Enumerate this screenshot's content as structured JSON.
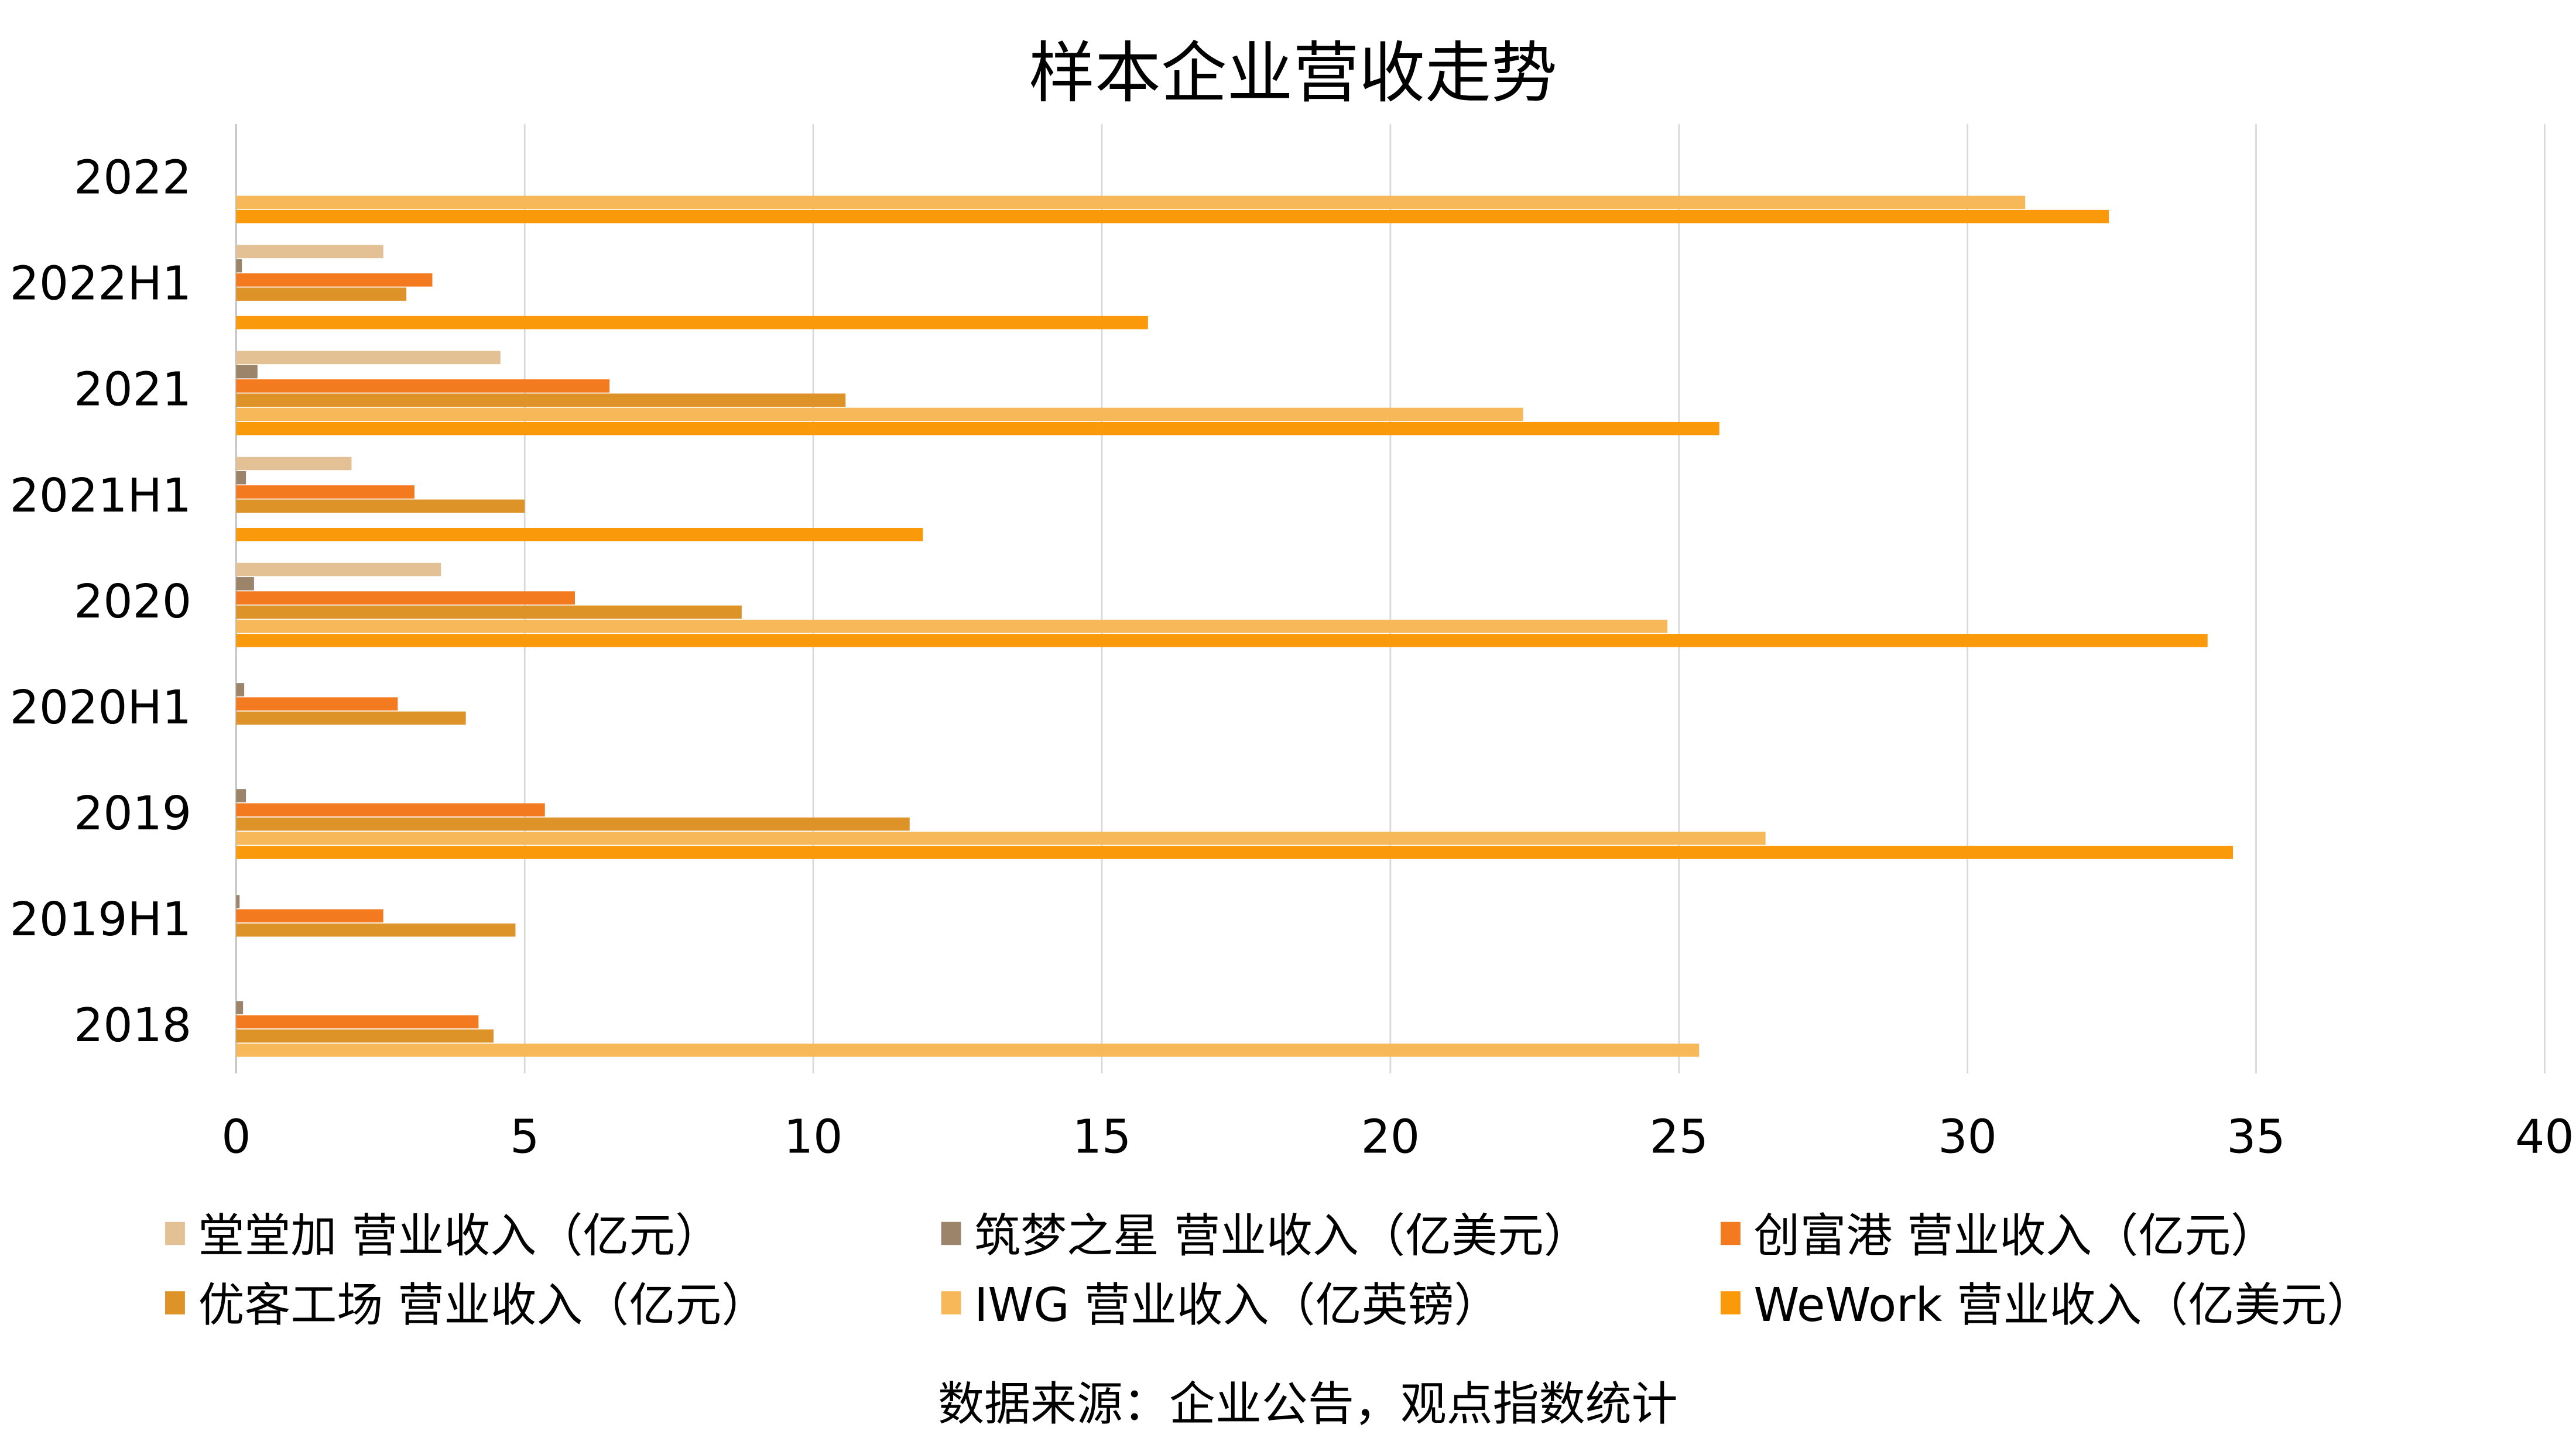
{
  "chart_data": {
    "type": "bar",
    "orientation": "horizontal",
    "title": "样本企业营收走势",
    "source": "数据来源：企业公告，观点指数统计",
    "xlim": [
      0,
      40
    ],
    "xticks": [
      "0",
      "5",
      "10",
      "15",
      "20",
      "25",
      "30",
      "35",
      "40"
    ],
    "grid": true,
    "legend_position": "bottom",
    "categories": [
      "2022",
      "2022H1",
      "2021",
      "2021H1",
      "2020",
      "2020H1",
      "2019",
      "2019H1",
      "2018"
    ],
    "series": [
      {
        "name": "堂堂加 营业收入（亿元）",
        "color": "#E4C195",
        "values": [
          null,
          2.55,
          4.58,
          2.0,
          3.55,
          null,
          null,
          null,
          null
        ]
      },
      {
        "name": "筑梦之星 营业收入（亿美元）",
        "color": "#9C846A",
        "values": [
          null,
          0.1,
          0.37,
          0.17,
          0.31,
          0.14,
          0.17,
          0.06,
          0.12
        ]
      },
      {
        "name": "创富港 营业收入（亿元）",
        "color": "#F47A20",
        "values": [
          null,
          3.4,
          6.47,
          3.09,
          5.87,
          2.8,
          5.35,
          2.55,
          4.2
        ]
      },
      {
        "name": "优客工场 营业收入（亿元）",
        "color": "#DD9327",
        "values": [
          null,
          2.95,
          10.56,
          5.0,
          8.76,
          3.98,
          11.67,
          4.84,
          4.46
        ]
      },
      {
        "name": "IWG 营业收入（亿英镑）",
        "color": "#F7B85A",
        "values": [
          31.0,
          null,
          22.3,
          null,
          24.8,
          null,
          26.5,
          null,
          25.35
        ]
      },
      {
        "name": "WeWork 营业收入（亿美元）",
        "color": "#FA9A0A",
        "values": [
          32.45,
          15.8,
          25.7,
          11.9,
          34.16,
          null,
          34.6,
          null,
          null
        ]
      }
    ]
  }
}
